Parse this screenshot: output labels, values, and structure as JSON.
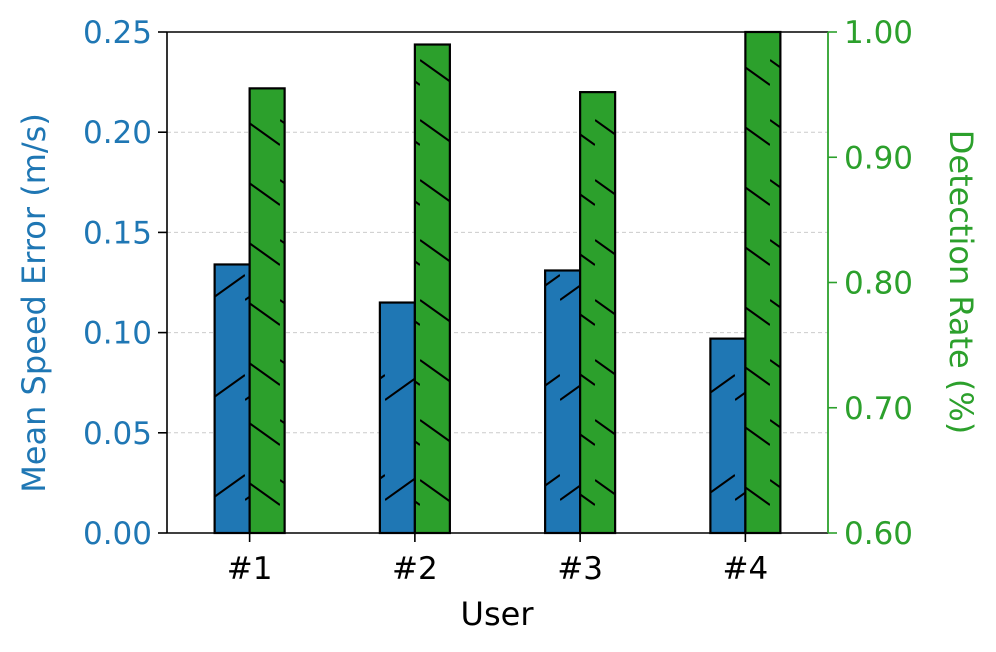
{
  "chart_data": {
    "type": "bar",
    "categories": [
      "#1",
      "#2",
      "#3",
      "#4"
    ],
    "xlabel": "User",
    "series": [
      {
        "name": "Mean Speed Error (m/s)",
        "axis": "left",
        "color": "#1f77b4",
        "hatch": "forward-diagonal",
        "values": [
          0.134,
          0.115,
          0.131,
          0.097
        ]
      },
      {
        "name": "Detection Rate (%)",
        "axis": "right",
        "color": "#2ca02c",
        "hatch": "back-diagonal",
        "values": [
          0.955,
          0.99,
          0.952,
          1.0
        ]
      }
    ],
    "y_left": {
      "label": "Mean Speed Error (m/s)",
      "lim": [
        0,
        0.25
      ],
      "ticks": [
        "0.00",
        "0.05",
        "0.10",
        "0.15",
        "0.20",
        "0.25"
      ],
      "color": "#1f77b4"
    },
    "y_right": {
      "label": "Detection Rate (%)",
      "lim": [
        0.6,
        1.0
      ],
      "ticks": [
        "0.60",
        "0.70",
        "0.80",
        "0.90",
        "1.00"
      ],
      "color": "#2ca02c"
    },
    "grid": "horizontal dashed"
  }
}
